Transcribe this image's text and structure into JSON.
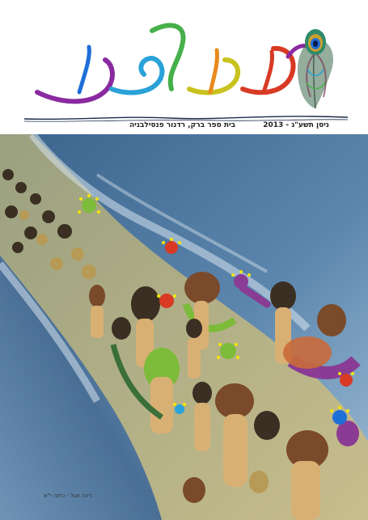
{
  "masthead": {
    "logo_text": "עמה למה",
    "issue_date": "ניסן תשע\"ג - 2013",
    "school_name": "בית ספר ברק, רדנור פנסילבניה"
  },
  "cover": {
    "artist_credit": "דינה אגל - כיתה י\"א"
  },
  "colors": {
    "sea": "#4a6f96",
    "foam": "#d7e3ee",
    "seabed": "#b8ad7e",
    "figure_skin": "#d9b073",
    "hair_dark": "#3a2f22",
    "hair_brown": "#7a4a2a",
    "torch_yellow": "#f5e600",
    "robe_purple": "#8a3c94",
    "robe_green": "#7dbb3a",
    "rainbow": [
      "#1e6fd8",
      "#2aa2d8",
      "#46b04a",
      "#c8c21e",
      "#e88a1e",
      "#d83a24",
      "#8a2aa0"
    ]
  }
}
